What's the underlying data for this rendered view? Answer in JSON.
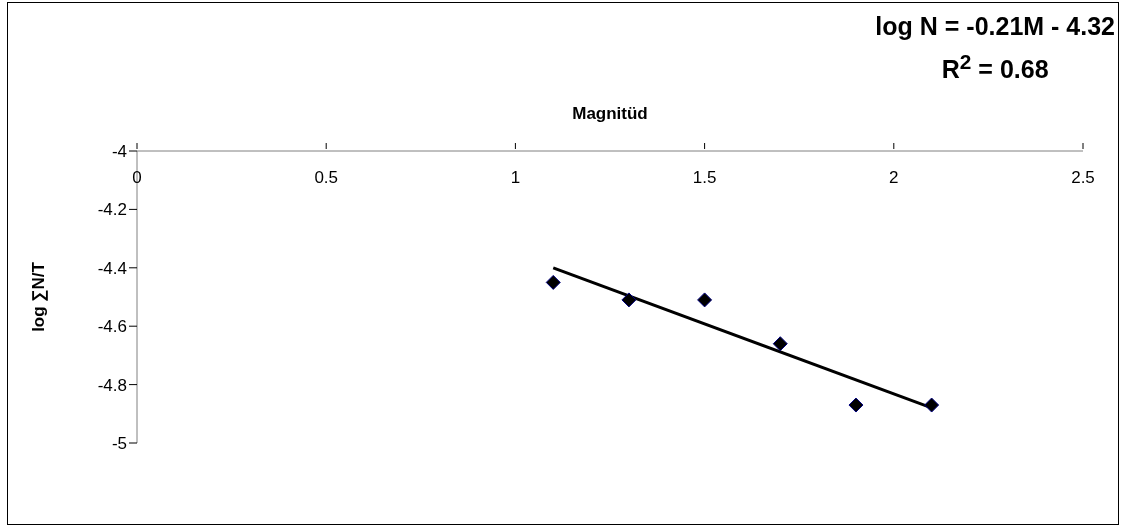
{
  "chart_data": {
    "type": "scatter",
    "xlabel": "Magnitüd",
    "ylabel": "log ∑N/T",
    "annotations": [
      "log N = -0.21M - 4.32",
      "R$^{2}$ = 0.68"
    ],
    "xlim": [
      0,
      2.5
    ],
    "xticks": [
      0,
      0.5,
      1,
      1.5,
      2,
      2.5
    ],
    "ylim": [
      -5,
      -4
    ],
    "yticks": [
      -5,
      -4.8,
      -4.6,
      -4.4,
      -4.2,
      -4
    ],
    "marker": "diamond",
    "series": [
      {
        "color": "#000000",
        "x": [
          1.1,
          1.3,
          1.5,
          1.7,
          1.9,
          2.1
        ],
        "values": [
          -4.45,
          -4.51,
          -4.51,
          -4.66,
          -4.87,
          -4.87
        ]
      },
      {
        "type": "line",
        "color": "#000000",
        "marker": "none",
        "x": [
          1.1,
          2.1
        ],
        "values": [
          -4.4,
          -4.88
        ]
      }
    ]
  }
}
